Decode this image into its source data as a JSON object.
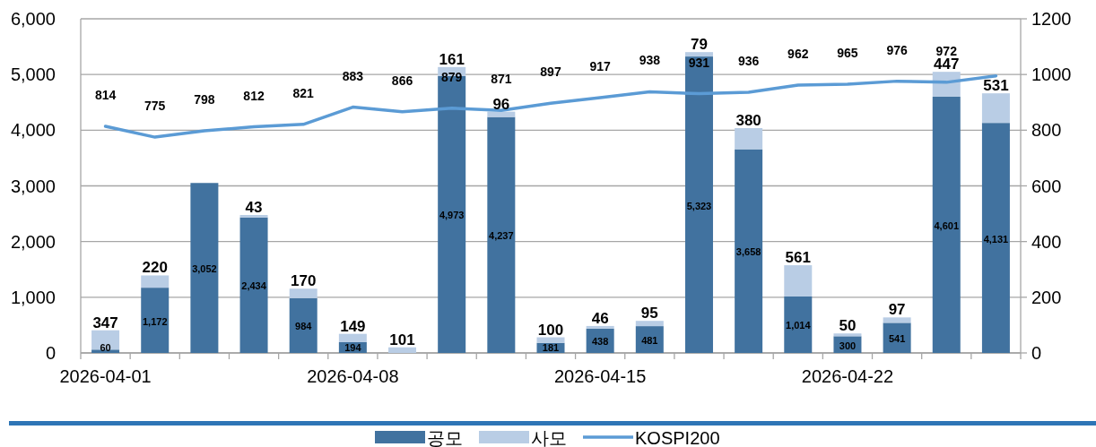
{
  "chart_data": {
    "type": "bar",
    "stacked": true,
    "grid": "y",
    "legend": "bottom",
    "categories": [
      "2026-04-01",
      null,
      null,
      null,
      null,
      "2026-04-08",
      null,
      null,
      null,
      null,
      "2026-04-15",
      null,
      null,
      null,
      null,
      "2026-04-22",
      null,
      null,
      null
    ],
    "series": [
      {
        "name": "공모",
        "type": "bar",
        "color": "#41729f",
        "values": [
          60,
          1172,
          3052,
          2434,
          984,
          194,
          null,
          4973,
          4237,
          181,
          438,
          481,
          5323,
          3658,
          1014,
          300,
          541,
          4601,
          4131
        ],
        "value_labels": [
          "60",
          "1,172",
          "3,052",
          "2,434",
          "984",
          "194",
          null,
          "4,973",
          "4,237",
          "181",
          "438",
          "481",
          "5,323",
          "3,658",
          "1,014",
          "300",
          "541",
          "4,601",
          "4,131"
        ]
      },
      {
        "name": "사모",
        "type": "bar",
        "color": "#b9cde5",
        "values": [
          347,
          220,
          null,
          43,
          170,
          149,
          101,
          161,
          96,
          100,
          46,
          95,
          79,
          380,
          561,
          50,
          97,
          447,
          531
        ],
        "value_labels": [
          "347",
          "220",
          null,
          "43",
          "170",
          "149",
          "101",
          "161",
          "96",
          "100",
          "46",
          "95",
          "79",
          "380",
          "561",
          "50",
          "97",
          "447",
          "531"
        ]
      },
      {
        "name": "KOSPI200",
        "type": "line",
        "axis": "y2",
        "color": "#5b9bd5",
        "values": [
          814,
          775,
          798,
          812,
          821,
          883,
          866,
          879,
          871,
          897,
          917,
          938,
          931,
          936,
          962,
          965,
          976,
          972,
          995
        ],
        "value_labels": [
          "814",
          "775",
          "798",
          "812",
          "821",
          "883",
          "866",
          "879",
          "871",
          "897",
          "917",
          "938",
          "931",
          "936",
          "962",
          "965",
          "976",
          "972",
          null
        ]
      }
    ],
    "ylim": [
      0,
      6000
    ],
    "yticks": [
      {
        "value": 0,
        "label": "0"
      },
      {
        "value": 1000,
        "label": "1,000"
      },
      {
        "value": 2000,
        "label": "2,000"
      },
      {
        "value": 3000,
        "label": "3,000"
      },
      {
        "value": 4000,
        "label": "4,000"
      },
      {
        "value": 5000,
        "label": "5,000"
      },
      {
        "value": 6000,
        "label": "6,000"
      }
    ],
    "y2lim": [
      0,
      1200
    ],
    "y2ticks": [
      0,
      200,
      400,
      600,
      800,
      1000,
      1200
    ]
  }
}
